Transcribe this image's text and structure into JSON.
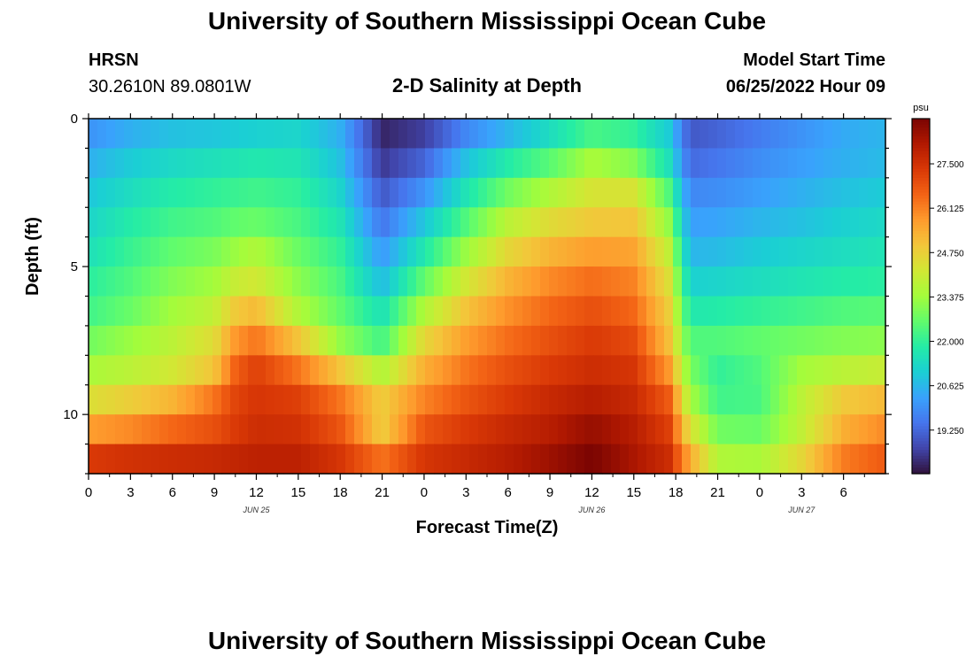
{
  "header": {
    "title": "University of Southern Mississippi Ocean Cube",
    "station": "HRSN",
    "coordinates": "30.2610N  89.0801W",
    "plot_title": "2-D Salinity at Depth",
    "model_start_label": "Model Start Time",
    "model_start_time": "06/25/2022 Hour 09"
  },
  "footer": {
    "title": "University of Southern Mississippi Ocean Cube"
  },
  "chart_data": {
    "type": "heatmap",
    "title": "2-D Salinity at Depth",
    "xlabel": "Forecast Time(Z)",
    "ylabel": "Depth (ft)",
    "x_hours": [
      0,
      57
    ],
    "x_tick_labels": [
      "0",
      "3",
      "6",
      "9",
      "12",
      "15",
      "18",
      "21",
      "0",
      "3",
      "6",
      "9",
      "12",
      "15",
      "18",
      "21",
      "0",
      "3",
      "6"
    ],
    "date_labels": [
      {
        "hour": 12,
        "label": "JUN 25"
      },
      {
        "hour": 36,
        "label": "JUN 26"
      },
      {
        "hour": 51,
        "label": "JUN 27"
      }
    ],
    "y_range_ft": [
      0,
      12
    ],
    "y_tick_labels": [
      {
        "value": 0,
        "label": "0"
      },
      {
        "value": 5,
        "label": "5"
      },
      {
        "value": 10,
        "label": "10"
      }
    ],
    "colorbar": {
      "unit": "psu",
      "min": 17.9,
      "max": 28.9,
      "ticks": [
        "27.500",
        "26.125",
        "24.750",
        "23.375",
        "22.000",
        "20.625",
        "19.250"
      ],
      "tick_values": [
        27.5,
        26.125,
        24.75,
        23.375,
        22.0,
        20.625,
        19.25
      ],
      "colors": [
        "#30123b",
        "#4145ab",
        "#4675ed",
        "#39a2fc",
        "#1bcfd4",
        "#24eca6",
        "#61fc6c",
        "#a4fc3b",
        "#d1e834",
        "#f3c63a",
        "#fe9b2d",
        "#f36315",
        "#d93806",
        "#b11901",
        "#7a0402"
      ]
    },
    "depth_levels_ft": [
      0.5,
      1.5,
      2.5,
      3.5,
      4.5,
      5.5,
      6.5,
      7.5,
      8.5,
      9.5,
      10.5,
      11.5
    ],
    "salinity_keyframes_hours": [
      0,
      3,
      6,
      9,
      10.5,
      12,
      15,
      18,
      21,
      24,
      27,
      30,
      33,
      36,
      39,
      41.5,
      43,
      45,
      48,
      51,
      54,
      57
    ],
    "salinity_psu": [
      [
        20.0,
        20.5,
        20.8,
        20.9,
        21.0,
        21.1,
        21.2,
        20.5,
        18.2,
        18.6,
        19.8,
        20.6,
        21.4,
        22.3,
        22.0,
        21.0,
        19.0,
        19.2,
        19.6,
        20.0,
        20.4,
        20.6
      ],
      [
        20.5,
        21.0,
        21.3,
        21.5,
        21.6,
        21.7,
        21.6,
        20.8,
        18.5,
        19.2,
        20.8,
        21.8,
        22.5,
        23.5,
        23.0,
        21.5,
        19.3,
        19.5,
        19.9,
        20.2,
        20.5,
        20.7
      ],
      [
        20.9,
        21.4,
        21.8,
        22.0,
        22.1,
        22.2,
        22.0,
        21.2,
        19.0,
        20.0,
        21.6,
        22.8,
        23.6,
        24.3,
        24.3,
        22.4,
        19.8,
        19.9,
        20.2,
        20.5,
        20.8,
        21.0
      ],
      [
        21.2,
        21.8,
        22.2,
        22.4,
        22.6,
        22.7,
        22.3,
        21.6,
        19.5,
        20.9,
        22.4,
        23.8,
        24.5,
        24.9,
        25.0,
        23.2,
        20.2,
        20.3,
        20.6,
        20.8,
        21.1,
        21.3
      ],
      [
        21.5,
        22.1,
        22.6,
        22.9,
        23.3,
        23.6,
        22.7,
        22.0,
        20.1,
        21.7,
        23.3,
        24.6,
        25.3,
        25.7,
        25.6,
        23.9,
        20.6,
        20.7,
        21.0,
        21.2,
        21.4,
        21.6
      ],
      [
        21.9,
        22.4,
        23.0,
        23.4,
        24.0,
        24.2,
        23.1,
        22.3,
        20.7,
        22.6,
        24.2,
        25.3,
        26.0,
        26.4,
        26.1,
        24.4,
        21.1,
        21.2,
        21.4,
        21.6,
        21.8,
        21.9
      ],
      [
        22.2,
        22.7,
        23.4,
        23.9,
        24.9,
        25.2,
        23.6,
        22.6,
        21.5,
        23.6,
        25.0,
        25.9,
        26.5,
        26.9,
        26.5,
        24.8,
        21.7,
        21.8,
        22.0,
        22.2,
        22.4,
        22.5
      ],
      [
        22.8,
        23.3,
        23.8,
        24.5,
        25.8,
        26.3,
        25.0,
        23.2,
        22.2,
        24.6,
        25.7,
        26.4,
        26.9,
        27.3,
        27.0,
        25.1,
        22.4,
        22.4,
        22.6,
        22.8,
        23.0,
        23.1
      ],
      [
        23.5,
        23.8,
        24.2,
        25.0,
        26.6,
        27.2,
        26.3,
        25.0,
        23.6,
        25.4,
        26.3,
        26.9,
        27.3,
        27.6,
        27.4,
        25.8,
        22.9,
        22.0,
        22.4,
        23.4,
        23.8,
        24.0
      ],
      [
        24.4,
        24.8,
        25.3,
        26.3,
        27.1,
        27.4,
        27.2,
        26.3,
        24.8,
        26.1,
        26.8,
        27.3,
        27.7,
        28.0,
        27.7,
        26.7,
        23.5,
        22.2,
        22.3,
        23.8,
        24.9,
        25.2
      ],
      [
        25.7,
        26.0,
        26.5,
        26.9,
        27.3,
        27.6,
        27.5,
        26.8,
        24.8,
        26.8,
        27.3,
        27.7,
        28.0,
        28.5,
        28.0,
        27.2,
        24.4,
        22.8,
        22.7,
        23.9,
        25.4,
        26.0
      ],
      [
        27.3,
        27.5,
        27.6,
        27.7,
        27.8,
        27.9,
        27.9,
        27.4,
        26.3,
        27.4,
        27.7,
        28.0,
        28.4,
        28.9,
        28.2,
        27.6,
        25.5,
        23.6,
        23.5,
        24.6,
        26.2,
        26.7
      ]
    ]
  }
}
